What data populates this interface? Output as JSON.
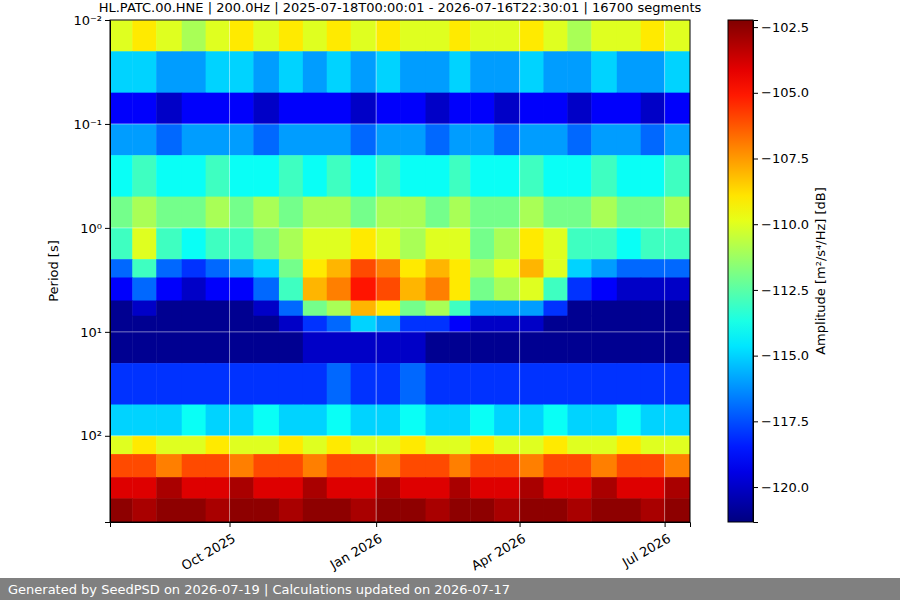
{
  "chart_data": {
    "type": "heatmap",
    "title": "HL.PATC.00.HNE | 200.0Hz | 2025-07-18T00:00:01 - 2026-07-16T22:30:01 | 16700 segments",
    "footer": "Generated by SeedPSD on 2026-07-19 | Calculations updated on 2026-07-17",
    "y_label": "Period [s]",
    "log": "y",
    "grid": true,
    "xlim": [
      "2025-07-18T00:00:01",
      "2026-07-16T22:30:01"
    ],
    "xticks": [
      {
        "value": "2025-10-01T00:00:00",
        "label": "Oct 2025"
      },
      {
        "value": "2026-01-01T00:00:00",
        "label": "Jan 2026"
      },
      {
        "value": "2026-04-01T00:00:00",
        "label": "Apr 2026"
      },
      {
        "value": "2026-07-01T00:00:00",
        "label": "Jul 2026"
      }
    ],
    "ylim": [
      0.01,
      675
    ],
    "yticks": [
      {
        "value": 0.01,
        "label": "10⁻²"
      },
      {
        "value": 0.1,
        "label": "10⁻¹"
      },
      {
        "value": 1,
        "label": "10⁰"
      },
      {
        "value": 10,
        "label": "10¹"
      },
      {
        "value": 100,
        "label": "10²"
      }
    ],
    "x_edges": [
      "2025-07-18T00:00:01",
      "2025-08-01T00:00:00",
      "2025-08-16T00:00:00",
      "2025-09-01T00:00:00",
      "2025-09-16T00:00:00",
      "2025-10-01T00:00:00",
      "2025-10-16T00:00:00",
      "2025-11-01T00:00:00",
      "2025-11-16T00:00:00",
      "2025-12-01T00:00:00",
      "2025-12-16T00:00:00",
      "2026-01-01T00:00:00",
      "2026-01-16T00:00:00",
      "2026-02-01T00:00:00",
      "2026-02-16T00:00:00",
      "2026-03-01T00:00:00",
      "2026-03-16T00:00:00",
      "2026-04-01T00:00:00",
      "2026-04-16T00:00:00",
      "2026-05-01T00:00:00",
      "2026-05-16T00:00:00",
      "2026-06-01T00:00:00",
      "2026-06-16T00:00:00",
      "2026-07-01T00:00:00",
      "2026-07-16T22:30:01"
    ],
    "y_edges": [
      0.01,
      0.02,
      0.05,
      0.1,
      0.2,
      0.5,
      1,
      2,
      3,
      5,
      7,
      10,
      20,
      50,
      100,
      150,
      250,
      400,
      675
    ],
    "z": [
      [
        -110,
        -109,
        -110,
        -111,
        -110,
        -109,
        -110,
        -109,
        -110,
        -109,
        -110,
        -109,
        -110,
        -110,
        -109,
        -110,
        -110,
        -109,
        -110,
        -111,
        -110,
        -110,
        -109,
        -110
      ],
      [
        -115,
        -115,
        -116,
        -116,
        -115,
        -115,
        -116,
        -115,
        -116,
        -115,
        -116,
        -115,
        -116,
        -116,
        -115,
        -116,
        -116,
        -115,
        -116,
        -116,
        -115,
        -116,
        -116,
        -115
      ],
      [
        -119,
        -119,
        -120,
        -119,
        -119,
        -119,
        -120,
        -119,
        -119,
        -119,
        -120,
        -119,
        -119,
        -120,
        -119,
        -119,
        -120,
        -119,
        -119,
        -120,
        -119,
        -119,
        -120,
        -119
      ],
      [
        -116,
        -116,
        -117,
        -116,
        -116,
        -116,
        -117,
        -116,
        -116,
        -116,
        -117,
        -116,
        -116,
        -117,
        -116,
        -116,
        -117,
        -116,
        -116,
        -117,
        -116,
        -116,
        -117,
        -116
      ],
      [
        -114,
        -113,
        -114,
        -114,
        -113,
        -114,
        -114,
        -113,
        -114,
        -113,
        -114,
        -113,
        -114,
        -114,
        -113,
        -114,
        -114,
        -113,
        -114,
        -114,
        -113,
        -114,
        -114,
        -113
      ],
      [
        -112,
        -111,
        -112,
        -112,
        -111,
        -112,
        -111,
        -112,
        -111,
        -111,
        -112,
        -111,
        -111,
        -112,
        -111,
        -112,
        -112,
        -111,
        -112,
        -112,
        -111,
        -112,
        -112,
        -111
      ],
      [
        -113,
        -110,
        -113,
        -114,
        -113,
        -113,
        -112,
        -111,
        -110,
        -110,
        -109,
        -110,
        -111,
        -110,
        -110,
        -112,
        -111,
        -109,
        -110,
        -113,
        -113,
        -114,
        -113,
        -113
      ],
      [
        -117,
        -113,
        -117,
        -118,
        -117,
        -116,
        -115,
        -112,
        -109,
        -108,
        -106,
        -107,
        -109,
        -108,
        -109,
        -111,
        -110,
        -108,
        -110,
        -115,
        -116,
        -117,
        -117,
        -117
      ],
      [
        -119,
        -117,
        -119,
        -120,
        -119,
        -119,
        -117,
        -113,
        -108,
        -107,
        -105,
        -106,
        -108,
        -107,
        -109,
        -112,
        -111,
        -110,
        -113,
        -118,
        -119,
        -120,
        -120,
        -120
      ],
      [
        -121,
        -120,
        -121,
        -121,
        -121,
        -121,
        -120,
        -117,
        -112,
        -111,
        -108,
        -109,
        -112,
        -111,
        -113,
        -116,
        -116,
        -116,
        -118,
        -121,
        -121,
        -121,
        -121,
        -121
      ],
      [
        -121,
        -121,
        -121,
        -121,
        -121,
        -121,
        -121,
        -120,
        -118,
        -117,
        -115,
        -116,
        -118,
        -118,
        -119,
        -120,
        -120,
        -120,
        -121,
        -121,
        -121,
        -121,
        -121,
        -121
      ],
      [
        -121,
        -121,
        -121,
        -121,
        -121,
        -121,
        -121,
        -121,
        -120,
        -120,
        -120,
        -120,
        -120,
        -121,
        -121,
        -121,
        -121,
        -121,
        -121,
        -121,
        -121,
        -121,
        -121,
        -121
      ],
      [
        -118,
        -118,
        -118,
        -118,
        -118,
        -118,
        -118,
        -118,
        -118,
        -117,
        -118,
        -118,
        -117,
        -118,
        -118,
        -118,
        -118,
        -118,
        -118,
        -118,
        -118,
        -118,
        -118,
        -118
      ],
      [
        -115,
        -115,
        -115,
        -114,
        -115,
        -115,
        -114,
        -115,
        -115,
        -114,
        -115,
        -115,
        -114,
        -115,
        -115,
        -114,
        -115,
        -115,
        -114,
        -115,
        -115,
        -114,
        -115,
        -115
      ],
      [
        -110,
        -109,
        -110,
        -110,
        -109,
        -110,
        -110,
        -109,
        -110,
        -109,
        -110,
        -110,
        -109,
        -110,
        -110,
        -109,
        -110,
        -110,
        -109,
        -110,
        -110,
        -109,
        -110,
        -110
      ],
      [
        -106,
        -106,
        -107,
        -106,
        -106,
        -107,
        -106,
        -106,
        -107,
        -106,
        -106,
        -107,
        -106,
        -106,
        -107,
        -106,
        -106,
        -107,
        -106,
        -106,
        -107,
        -106,
        -106,
        -107
      ],
      [
        -104,
        -104,
        -103,
        -104,
        -104,
        -103,
        -104,
        -104,
        -103,
        -104,
        -104,
        -103,
        -104,
        -104,
        -103,
        -104,
        -104,
        -103,
        -104,
        -104,
        -103,
        -104,
        -104,
        -103
      ],
      [
        -102.5,
        -103,
        -102.5,
        -102.5,
        -103,
        -102.5,
        -102.5,
        -103,
        -102.5,
        -102.5,
        -103,
        -102.5,
        -102.5,
        -103,
        -102.5,
        -102.5,
        -103,
        -102.5,
        -102.5,
        -103,
        -102.5,
        -102.5,
        -103,
        -102.5
      ]
    ],
    "colorbar": {
      "label": "Amplitude [m²/s⁴/Hz] [dB]",
      "range": [
        -121.33,
        -102.23
      ],
      "ticks": [
        {
          "value": -102.5,
          "label": "−102.5"
        },
        {
          "value": -105,
          "label": "−105.0"
        },
        {
          "value": -107.5,
          "label": "−107.5"
        },
        {
          "value": -110,
          "label": "−110.0"
        },
        {
          "value": -112.5,
          "label": "−112.5"
        },
        {
          "value": -115,
          "label": "−115.0"
        },
        {
          "value": -117.5,
          "label": "−117.5"
        },
        {
          "value": -120,
          "label": "−120.0"
        }
      ]
    }
  }
}
